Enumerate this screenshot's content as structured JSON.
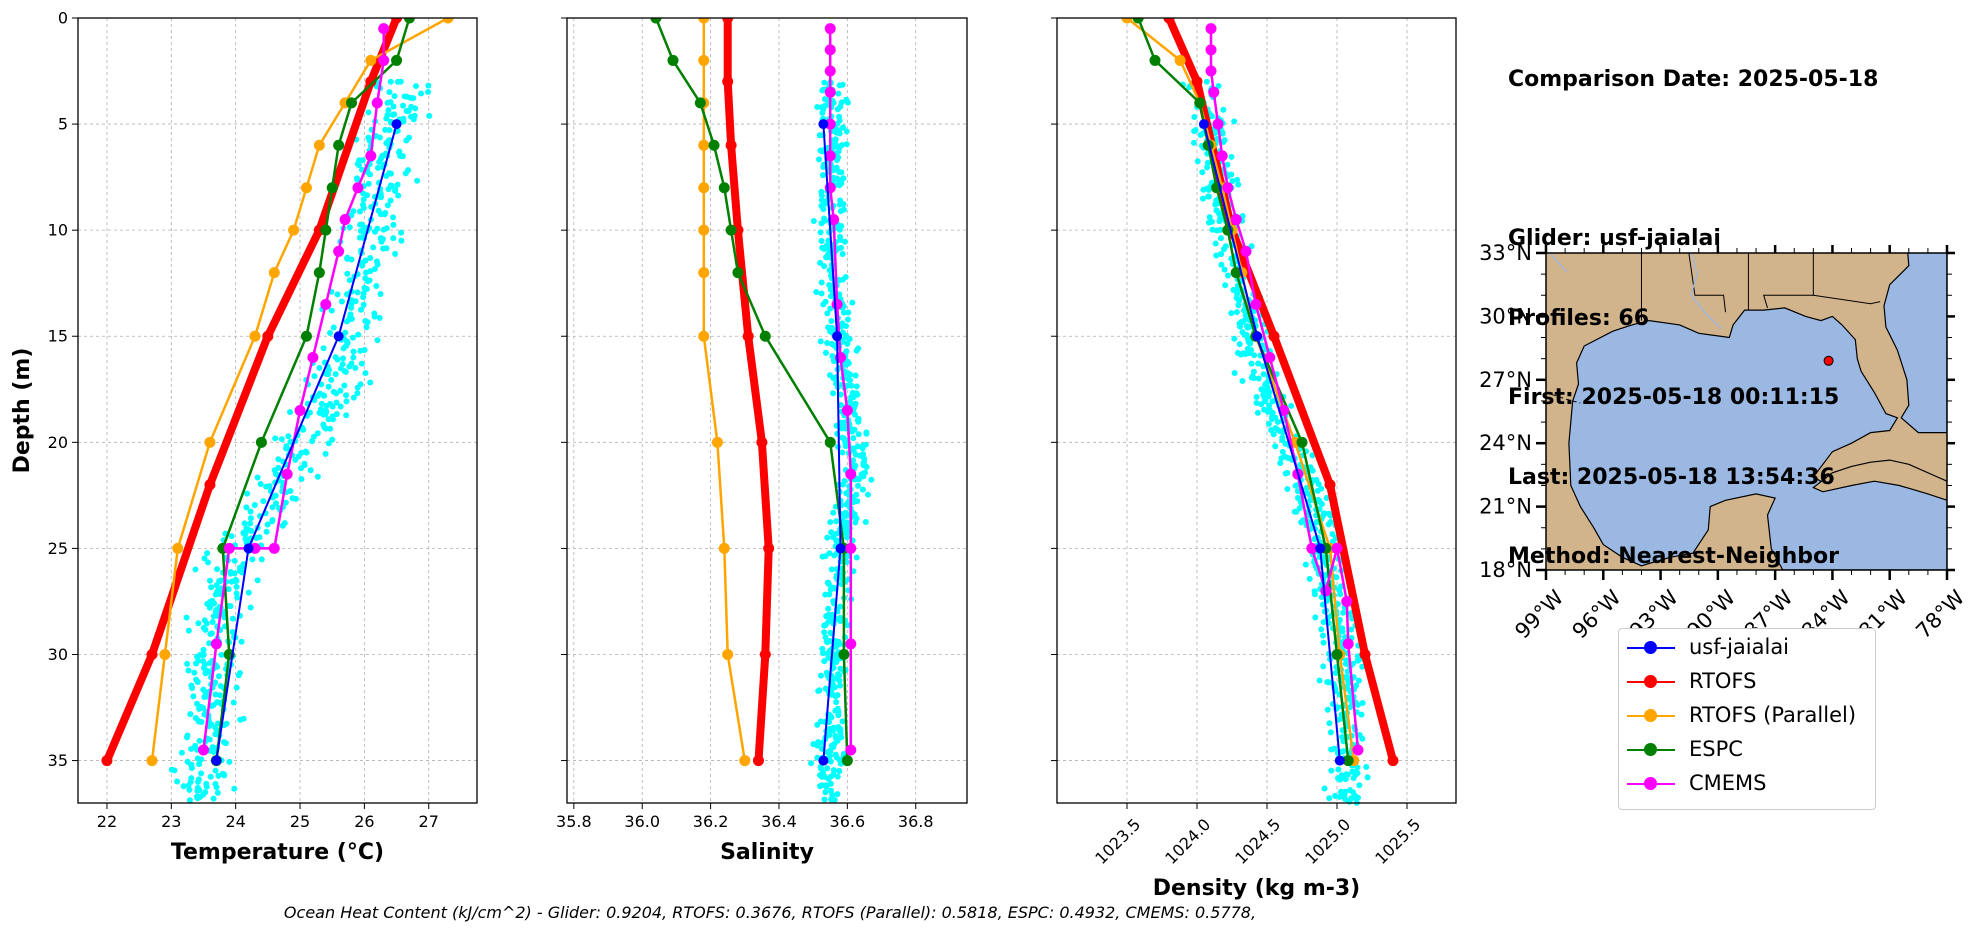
{
  "info": {
    "comparison_date": "Comparison Date: 2025-05-18",
    "glider": "Glider: usf-jaialai",
    "profiles": "Profiles: 66",
    "first": "First: 2025-05-18 00:11:15",
    "last": "Last: 2025-05-18 13:54:36",
    "method": "Method: Nearest-Neighbor"
  },
  "footer": "Ocean Heat Content (kJ/cm^2) - Glider: 0.9204,  RTOFS: 0.3676,  RTOFS (Parallel): 0.5818,  ESPC: 0.4932,  CMEMS: 0.5778,",
  "legend": [
    {
      "label": "usf-jaialai",
      "color": "#0000ff"
    },
    {
      "label": "RTOFS",
      "color": "#ff0000"
    },
    {
      "label": "RTOFS (Parallel)",
      "color": "#ffa500"
    },
    {
      "label": "ESPC",
      "color": "#008000"
    },
    {
      "label": "CMEMS",
      "color": "#ff00ff"
    }
  ],
  "colors": {
    "glider_cast": "#00ffff",
    "land": "#d2b48c",
    "ocean": "#9bb8e3",
    "station": "#ff0000"
  },
  "map": {
    "lat_labels": [
      "33°N",
      "30°N",
      "27°N",
      "24°N",
      "21°N",
      "18°N"
    ],
    "lon_labels": [
      "99°W",
      "96°W",
      "93°W",
      "90°W",
      "87°W",
      "84°W",
      "81°W",
      "78°W"
    ],
    "extent": {
      "lon": [
        -99,
        -78
      ],
      "lat": [
        18,
        33
      ]
    },
    "station": {
      "lon": -84.2,
      "lat": 27.9
    }
  },
  "chart_data": [
    {
      "type": "line",
      "xlabel": "Temperature (°C)",
      "ylabel": "Depth (m)",
      "xlim": [
        21.55,
        27.75
      ],
      "ylim": [
        37,
        0
      ],
      "xticks": [
        22,
        23,
        24,
        25,
        26,
        27
      ],
      "yticks": [
        0,
        5,
        10,
        15,
        20,
        25,
        30,
        35
      ],
      "grid": true,
      "scatter_glider_cast": {
        "depth_range": [
          3,
          37
        ],
        "center": [
          [
            3,
            26.6
          ],
          [
            6,
            26.4
          ],
          [
            10,
            26.1
          ],
          [
            14,
            25.8
          ],
          [
            17,
            25.6
          ],
          [
            20,
            25.1
          ],
          [
            22,
            24.7
          ],
          [
            25,
            24.0
          ],
          [
            28,
            23.7
          ],
          [
            32,
            23.6
          ],
          [
            36,
            23.5
          ]
        ],
        "spread": 0.3
      },
      "series": [
        {
          "name": "usf-jaialai",
          "x": [
            26.5,
            25.6,
            24.2,
            23.7
          ],
          "y": [
            5,
            15,
            25,
            35
          ]
        },
        {
          "name": "RTOFS",
          "x": [
            26.5,
            26.1,
            25.3,
            24.5,
            23.6,
            22.7,
            22.0
          ],
          "y": [
            0,
            3,
            10,
            15,
            22,
            30,
            35
          ]
        },
        {
          "name": "RTOFS (Parallel)",
          "x": [
            27.3,
            26.1,
            25.7,
            25.3,
            25.1,
            24.9,
            24.6,
            24.3,
            23.6,
            23.1,
            22.9,
            22.7
          ],
          "y": [
            0,
            2,
            4,
            6,
            8,
            10,
            12,
            15,
            20,
            25,
            30,
            35
          ]
        },
        {
          "name": "ESPC",
          "x": [
            26.7,
            26.5,
            25.8,
            25.6,
            25.5,
            25.4,
            25.3,
            25.1,
            24.4,
            23.8,
            23.9,
            23.7
          ],
          "y": [
            0,
            2,
            4,
            6,
            8,
            10,
            12,
            15,
            20,
            25,
            30,
            35
          ]
        },
        {
          "name": "CMEMS",
          "x": [
            26.3,
            26.3,
            26.2,
            26.1,
            25.9,
            25.7,
            25.6,
            25.4,
            25.2,
            25.0,
            24.8,
            24.6,
            24.3,
            23.9,
            23.7,
            23.5
          ],
          "y": [
            0.5,
            2,
            4,
            6.5,
            8,
            9.5,
            11,
            13.5,
            16,
            18.5,
            21.5,
            25,
            25,
            25,
            29.5,
            34.5
          ]
        }
      ]
    },
    {
      "type": "line",
      "xlabel": "Salinity",
      "xlim": [
        35.78,
        36.95
      ],
      "ylim": [
        37,
        0
      ],
      "xticks": [
        "35.8",
        "36.0",
        "36.2",
        "36.4",
        "36.6",
        "36.8"
      ],
      "grid": true,
      "scatter_glider_cast": {
        "depth_range": [
          3,
          37
        ],
        "center": [
          [
            3,
            36.55
          ],
          [
            8,
            36.56
          ],
          [
            12,
            36.55
          ],
          [
            16,
            36.58
          ],
          [
            19,
            36.61
          ],
          [
            22,
            36.62
          ],
          [
            25,
            36.58
          ],
          [
            30,
            36.56
          ],
          [
            36,
            36.55
          ]
        ],
        "spread": 0.03
      },
      "series": [
        {
          "name": "usf-jaialai",
          "x": [
            36.53,
            36.57,
            36.58,
            36.53
          ],
          "y": [
            5,
            15,
            25,
            35
          ]
        },
        {
          "name": "RTOFS",
          "x": [
            36.25,
            36.25,
            36.26,
            36.28,
            36.31,
            36.35,
            36.37,
            36.36,
            36.34
          ],
          "y": [
            0,
            3,
            6,
            10,
            15,
            20,
            25,
            30,
            35
          ]
        },
        {
          "name": "RTOFS (Parallel)",
          "x": [
            36.18,
            36.18,
            36.18,
            36.18,
            36.18,
            36.18,
            36.18,
            36.18,
            36.22,
            36.24,
            36.25,
            36.3
          ],
          "y": [
            0,
            2,
            4,
            6,
            8,
            10,
            12,
            15,
            20,
            25,
            30,
            35
          ]
        },
        {
          "name": "ESPC",
          "x": [
            36.04,
            36.09,
            36.17,
            36.21,
            36.24,
            36.26,
            36.28,
            36.36,
            36.55,
            36.59,
            36.59,
            36.6
          ],
          "y": [
            0,
            2,
            4,
            6,
            8,
            10,
            12,
            15,
            20,
            25,
            30,
            35
          ]
        },
        {
          "name": "CMEMS",
          "x": [
            36.55,
            36.55,
            36.55,
            36.55,
            36.55,
            36.55,
            36.55,
            36.56,
            36.57,
            36.58,
            36.6,
            36.61,
            36.61,
            36.61,
            36.61
          ],
          "y": [
            0.5,
            1.5,
            2.5,
            3.5,
            5,
            6.5,
            8,
            9.5,
            13.5,
            16,
            18.5,
            21.5,
            25,
            29.5,
            34.5
          ]
        }
      ]
    },
    {
      "type": "line",
      "xlabel": "Density (kg m-3)",
      "xlim": [
        1023.0,
        1025.85
      ],
      "ylim": [
        37,
        0
      ],
      "xticks": [
        "1023.5",
        "1024.0",
        "1024.5",
        "1025.0",
        "1025.5"
      ],
      "grid": true,
      "scatter_glider_cast": {
        "depth_range": [
          3,
          37
        ],
        "center": [
          [
            3,
            1024.05
          ],
          [
            6,
            1024.12
          ],
          [
            10,
            1024.22
          ],
          [
            14,
            1024.35
          ],
          [
            17,
            1024.45
          ],
          [
            20,
            1024.62
          ],
          [
            23,
            1024.85
          ],
          [
            27,
            1024.95
          ],
          [
            31,
            1025.05
          ],
          [
            36,
            1025.1
          ]
        ],
        "spread": 0.1
      },
      "series": [
        {
          "name": "usf-jaialai",
          "x": [
            1024.05,
            1024.43,
            1024.88,
            1025.02
          ],
          "y": [
            5,
            15,
            25,
            35
          ]
        },
        {
          "name": "RTOFS",
          "x": [
            1023.8,
            1024.0,
            1024.25,
            1024.55,
            1024.95,
            1025.2,
            1025.4
          ],
          "y": [
            0,
            3,
            10,
            15,
            22,
            30,
            35
          ]
        },
        {
          "name": "RTOFS (Parallel)",
          "x": [
            1023.5,
            1023.88,
            1024.02,
            1024.1,
            1024.18,
            1024.25,
            1024.32,
            1024.42,
            1024.7,
            1024.95,
            1025.02,
            1025.12
          ],
          "y": [
            0,
            2,
            4,
            6,
            8,
            10,
            12,
            15,
            20,
            25,
            30,
            35
          ]
        },
        {
          "name": "ESPC",
          "x": [
            1023.58,
            1023.7,
            1024.02,
            1024.08,
            1024.14,
            1024.22,
            1024.28,
            1024.42,
            1024.75,
            1024.92,
            1025.0,
            1025.08
          ],
          "y": [
            0,
            2,
            4,
            6,
            8,
            10,
            12,
            15,
            20,
            25,
            30,
            35
          ]
        },
        {
          "name": "CMEMS",
          "x": [
            1024.1,
            1024.1,
            1024.1,
            1024.12,
            1024.15,
            1024.18,
            1024.22,
            1024.28,
            1024.35,
            1024.42,
            1024.52,
            1024.62,
            1024.72,
            1024.82,
            1024.92,
            1025.0,
            1025.07,
            1025.08,
            1025.15
          ],
          "y": [
            0.5,
            1.5,
            2.5,
            3.5,
            5,
            6.5,
            8,
            9.5,
            11,
            13.5,
            16,
            18.5,
            21.5,
            25,
            27,
            25,
            27.5,
            29.5,
            34.5
          ]
        }
      ]
    }
  ]
}
